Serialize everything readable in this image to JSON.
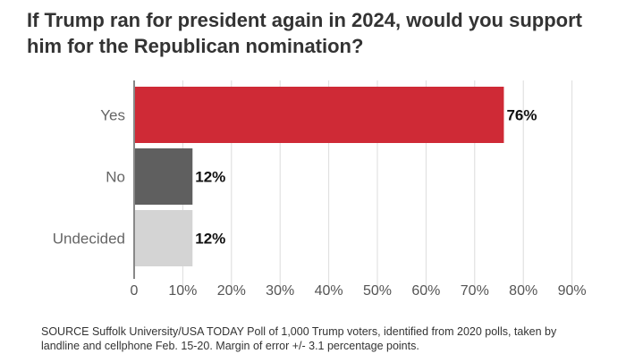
{
  "chart_data": {
    "type": "bar",
    "orientation": "horizontal",
    "title": "If Trump ran for president again in 2024, would you support him for the Republican nomination?",
    "categories": [
      "Yes",
      "No",
      "Undecided"
    ],
    "values": [
      76,
      12,
      12
    ],
    "data_labels": [
      "76%",
      "12%",
      "12%"
    ],
    "colors": [
      "#cf2a36",
      "#5f5f5f",
      "#d4d4d4"
    ],
    "xlim": [
      0,
      90
    ],
    "xticks": [
      0,
      10,
      20,
      30,
      40,
      50,
      60,
      70,
      80,
      90
    ],
    "xtick_labels": [
      "0",
      "10%",
      "20%",
      "30%",
      "40%",
      "50%",
      "60%",
      "70%",
      "80%",
      "90%"
    ],
    "grid": true,
    "xlabel": "",
    "ylabel": ""
  },
  "source": "SOURCE Suffolk University/USA TODAY Poll of 1,000 Trump voters, identified from 2020 polls, taken by landline and cellphone Feb. 15-20. Margin of error +/- 3.1 percentage points."
}
